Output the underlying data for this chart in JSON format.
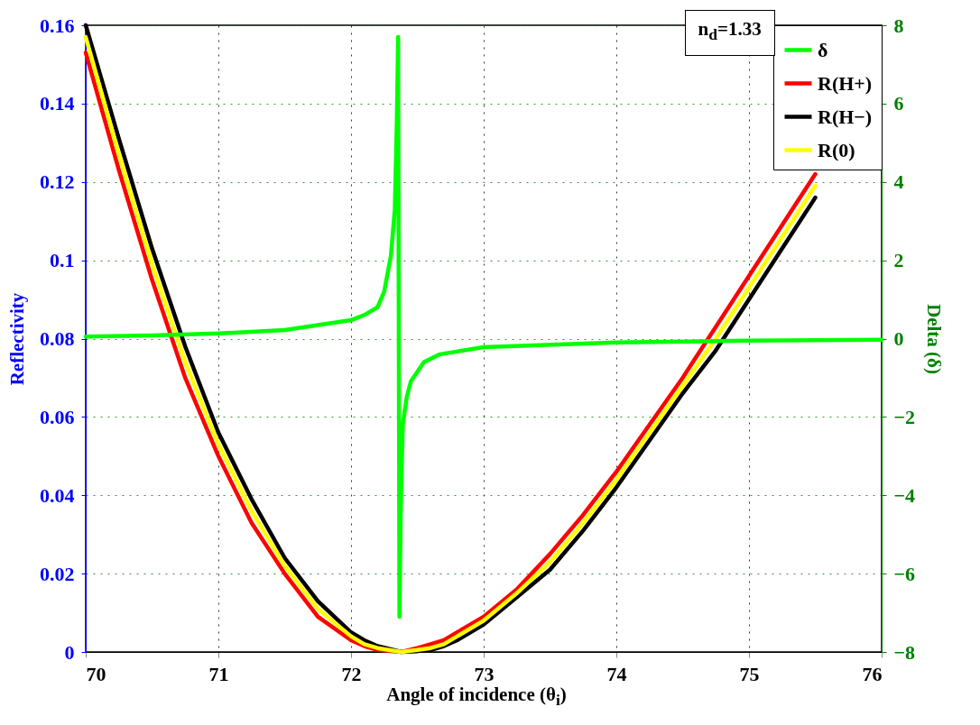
{
  "chart_data": {
    "type": "line",
    "xlabel": "Angle of incidence (θ$_{i}$)",
    "ylabel": "Reflectivity",
    "y2label": "Delta (δ)",
    "x": [
      70,
      70.25,
      70.5,
      70.75,
      71,
      71.25,
      71.5,
      71.75,
      72,
      72.1,
      72.2,
      72.38,
      72.5,
      72.6,
      72.7,
      72.8,
      73,
      73.25,
      73.5,
      73.75,
      74,
      74.25,
      74.5,
      74.75,
      75,
      75.25,
      75.5
    ],
    "series": [
      {
        "name": "δ",
        "color": "#00ff00",
        "axis": "y2",
        "x": [
          70,
          70.5,
          71,
          71.5,
          72,
          72.1,
          72.2,
          72.25,
          72.3,
          72.33,
          72.345,
          72.355,
          72.365,
          72.375,
          72.39,
          72.42,
          72.45,
          72.49,
          72.55,
          72.67,
          73,
          74,
          75,
          76
        ],
        "values": [
          0.05,
          0.08,
          0.13,
          0.22,
          0.47,
          0.6,
          0.8,
          1.2,
          2.1,
          3.3,
          5.5,
          7.7,
          -7.1,
          -4.3,
          -2.2,
          -1.5,
          -1.1,
          -0.9,
          -0.6,
          -0.4,
          -0.22,
          -0.1,
          -0.05,
          -0.03
        ]
      },
      {
        "name": "R(H+)",
        "color": "#ff0000",
        "values": [
          0.153,
          0.123,
          0.095,
          0.07,
          0.05,
          0.033,
          0.02,
          0.009,
          0.003,
          0.0015,
          0.0005,
          0,
          0.001,
          0.002,
          0.003,
          0.005,
          0.009,
          0.016,
          0.025,
          0.035,
          0.046,
          0.058,
          0.07,
          0.083,
          0.096,
          0.109,
          0.122
        ]
      },
      {
        "name": "R(H−)",
        "color": "#000000",
        "values": [
          0.16,
          0.131,
          0.103,
          0.078,
          0.056,
          0.039,
          0.024,
          0.013,
          0.005,
          0.003,
          0.0015,
          0,
          0.0002,
          0.0005,
          0.0015,
          0.003,
          0.007,
          0.014,
          0.021,
          0.031,
          0.042,
          0.054,
          0.066,
          0.077,
          0.09,
          0.103,
          0.116
        ]
      },
      {
        "name": "R(0)",
        "color": "#ffff00",
        "values": [
          0.157,
          0.127,
          0.099,
          0.074,
          0.053,
          0.036,
          0.022,
          0.011,
          0.004,
          0.002,
          0.001,
          0,
          0.0005,
          0.001,
          0.002,
          0.004,
          0.008,
          0.015,
          0.023,
          0.033,
          0.044,
          0.056,
          0.068,
          0.08,
          0.093,
          0.106,
          0.119
        ]
      }
    ],
    "xlim": [
      70,
      76
    ],
    "xticks": [
      70,
      71,
      72,
      73,
      74,
      75,
      76
    ],
    "ylim": [
      0,
      0.16
    ],
    "yticks": [
      0,
      0.02,
      0.04,
      0.06,
      0.08,
      0.1,
      0.12,
      0.14,
      0.16
    ],
    "y2lim": [
      -8,
      8
    ],
    "y2ticks": [
      -8,
      -6,
      -4,
      -2,
      0,
      2,
      4,
      6,
      8
    ],
    "grid": true,
    "legend": "top right",
    "marker": "none",
    "line_style": "solid",
    "annotations": [
      "n$_{d}$=1.33"
    ]
  }
}
